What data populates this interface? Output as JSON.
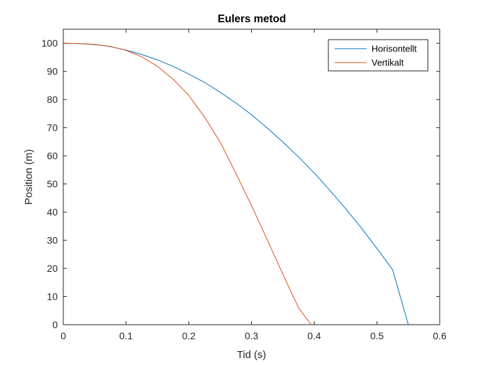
{
  "chart_data": {
    "type": "line",
    "title": "Eulers metod",
    "xlabel": "Tid (s)",
    "ylabel": "Position (m)",
    "xlim": [
      0,
      0.6
    ],
    "ylim": [
      0,
      105
    ],
    "xticks": [
      0,
      0.1,
      0.2,
      0.3,
      0.4,
      0.5,
      0.6
    ],
    "xtick_labels": [
      "0",
      "0.1",
      "0.2",
      "0.3",
      "0.4",
      "0.5",
      "0.6"
    ],
    "yticks": [
      0,
      10,
      20,
      30,
      40,
      50,
      60,
      70,
      80,
      90,
      100
    ],
    "ytick_labels": [
      "0",
      "10",
      "20",
      "30",
      "40",
      "50",
      "60",
      "70",
      "80",
      "90",
      "100"
    ],
    "grid": false,
    "legend_position": "top-right",
    "series": [
      {
        "name": "Horisontellt",
        "color": "#0072BD",
        "x": [
          0,
          0.025,
          0.05,
          0.075,
          0.1,
          0.125,
          0.15,
          0.175,
          0.2,
          0.225,
          0.25,
          0.275,
          0.3,
          0.325,
          0.35,
          0.375,
          0.4,
          0.425,
          0.45,
          0.475,
          0.5,
          0.525,
          0.55
        ],
        "y": [
          100,
          99.9,
          99.6,
          98.8,
          97.6,
          96.0,
          94.1,
          91.8,
          89.1,
          86.1,
          82.6,
          78.8,
          74.6,
          69.9,
          64.9,
          59.6,
          53.9,
          47.7,
          41.2,
          34.4,
          27.1,
          19.5,
          0
        ]
      },
      {
        "name": "Vertikalt",
        "color": "#D95319",
        "x": [
          0,
          0.025,
          0.05,
          0.075,
          0.1,
          0.125,
          0.15,
          0.175,
          0.2,
          0.225,
          0.25,
          0.275,
          0.3,
          0.325,
          0.35,
          0.375,
          0.395
        ],
        "y": [
          100,
          99.9,
          99.5,
          98.9,
          97.5,
          95.2,
          91.8,
          87.2,
          81.5,
          73.8,
          64.9,
          53.8,
          42.3,
          30.3,
          17.9,
          6.0,
          0
        ]
      }
    ]
  }
}
